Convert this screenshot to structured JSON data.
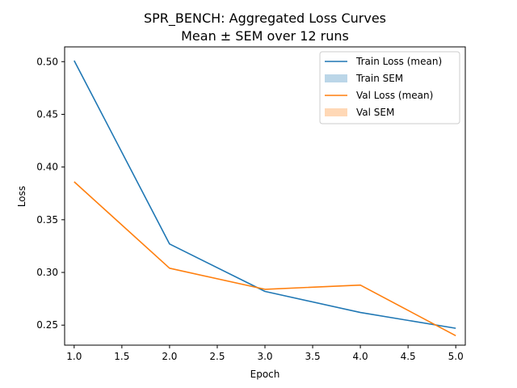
{
  "chart_data": {
    "type": "line",
    "title": "SPR_BENCH: Aggregated Loss Curves",
    "subtitle": "Mean ± SEM over 12 runs",
    "xlabel": "Epoch",
    "ylabel": "Loss",
    "xlim": [
      0.9,
      5.1
    ],
    "ylim": [
      0.231,
      0.514
    ],
    "xticks": [
      1.0,
      1.5,
      2.0,
      2.5,
      3.0,
      3.5,
      4.0,
      4.5,
      5.0
    ],
    "yticks": [
      0.25,
      0.3,
      0.35,
      0.4,
      0.45,
      0.5
    ],
    "x": [
      1,
      2,
      3,
      4,
      5
    ],
    "grid": false,
    "legend_position": "top-right",
    "series": [
      {
        "name": "Train Loss (mean)",
        "values": [
          0.501,
          0.327,
          0.282,
          0.262,
          0.247
        ],
        "color": "#1f77b4"
      },
      {
        "name": "Val Loss (mean)",
        "values": [
          0.386,
          0.304,
          0.284,
          0.288,
          0.24
        ],
        "color": "#ff7f0e"
      }
    ],
    "bands": [
      {
        "name": "Train SEM",
        "color": "#1f77b4",
        "opacity": 0.3
      },
      {
        "name": "Val SEM",
        "color": "#ff7f0e",
        "opacity": 0.3
      }
    ]
  }
}
